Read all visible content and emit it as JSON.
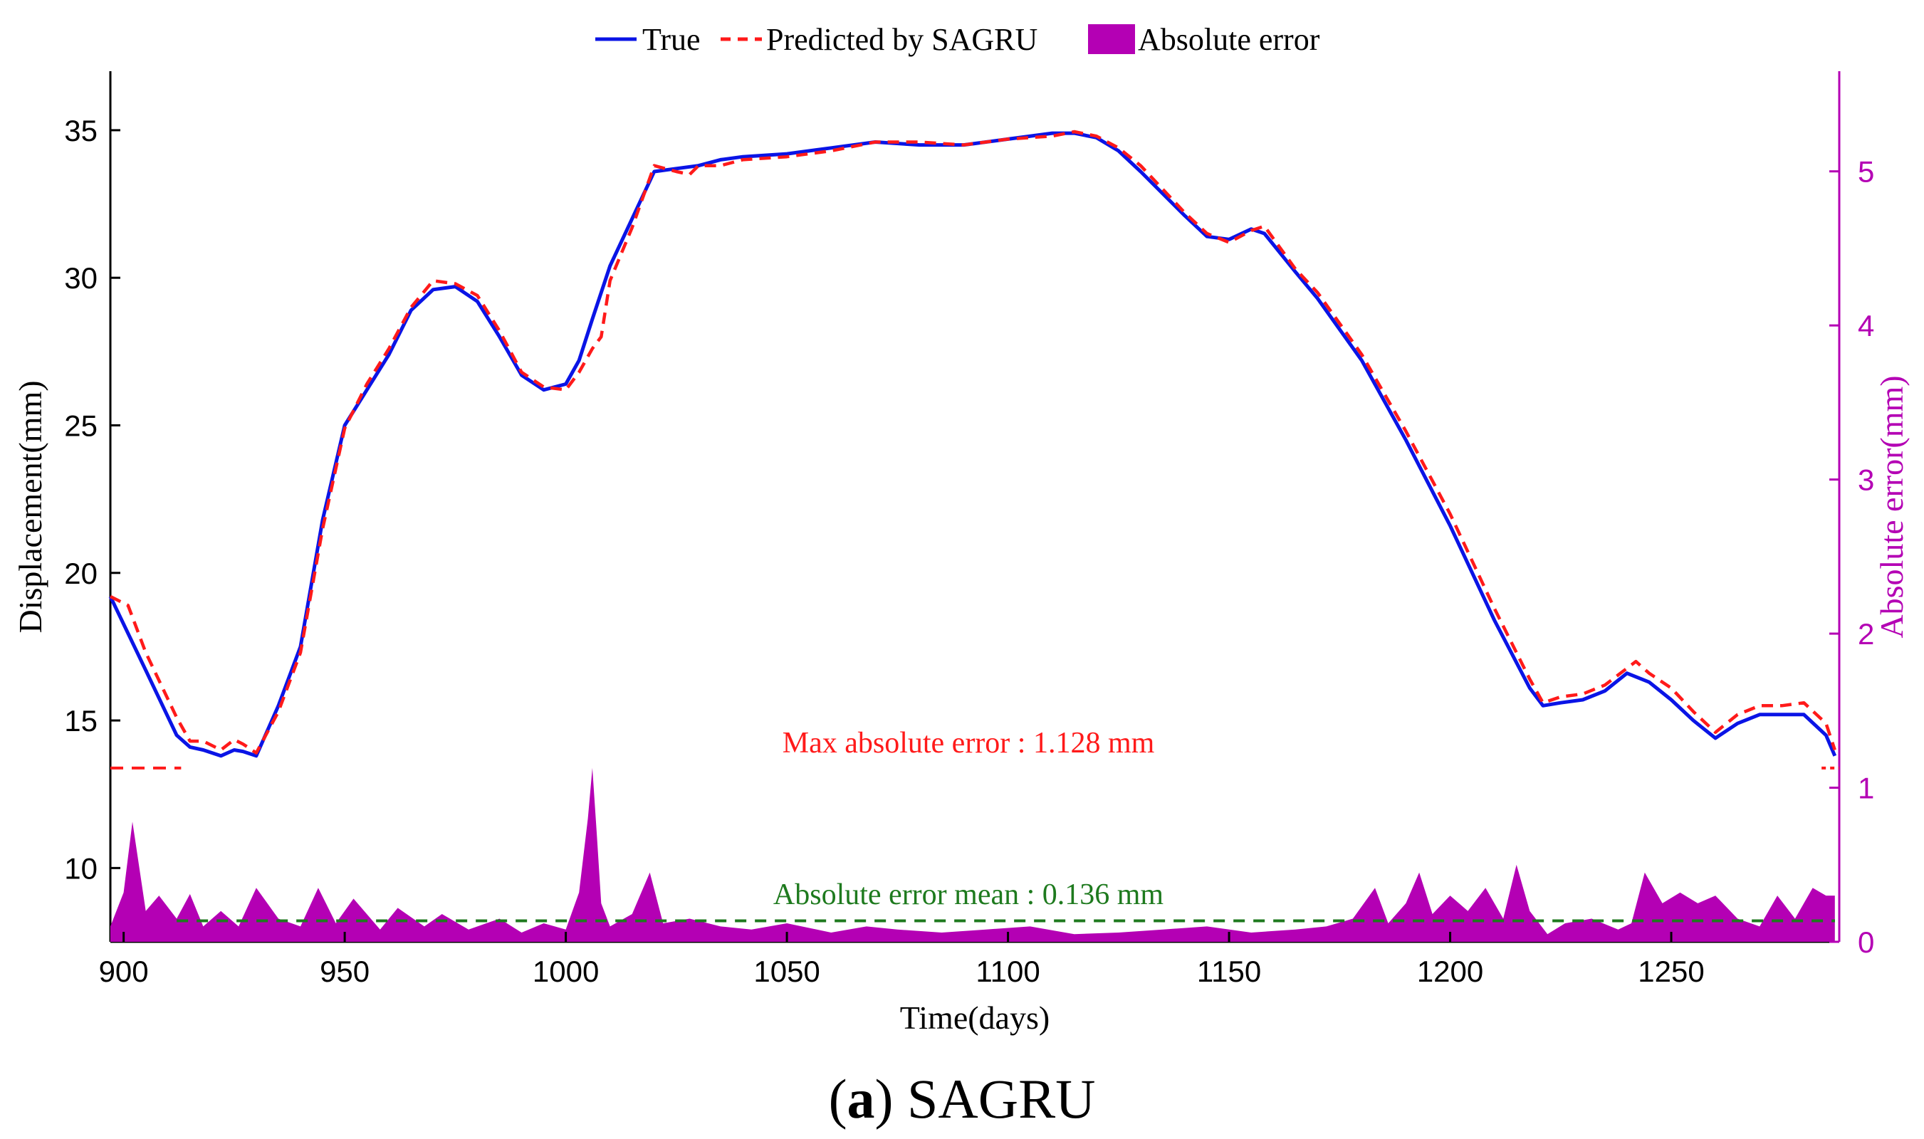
{
  "caption": {
    "letter": "a",
    "text": "SAGRU"
  },
  "colors": {
    "true": "#0a14e6",
    "predicted": "#ff1a1a",
    "error": "#b400b4",
    "mean": "#1e7a1e",
    "axis": "#000000"
  },
  "chart_data": {
    "type": "line",
    "xlabel": "Time(days)",
    "ylabel": "Displacement(mm)",
    "y2label": "Absolute error(mm)",
    "xlim": [
      897,
      1288
    ],
    "ylim": [
      7.5,
      37
    ],
    "y2lim": [
      0,
      5.65
    ],
    "xticks": [
      900,
      950,
      1000,
      1050,
      1100,
      1150,
      1200,
      1250
    ],
    "yticks": [
      10,
      15,
      20,
      25,
      30,
      35
    ],
    "y2ticks": [
      0,
      1,
      2,
      3,
      4,
      5
    ],
    "legend": {
      "placement": "top",
      "entries": [
        "True",
        "Predicted by SAGRU",
        "Absolute error"
      ]
    },
    "annotations": {
      "max_error": "Max absolute error : 1.128 mm",
      "mean_error": "Absolute error mean : 0.136 mm"
    },
    "max_error_value": 1.128,
    "mean_error_value": 0.136,
    "series": [
      {
        "name": "True",
        "x": [
          897,
          905,
          912,
          915,
          918,
          922,
          925,
          927,
          930,
          935,
          940,
          945,
          950,
          955,
          960,
          965,
          970,
          975,
          980,
          985,
          990,
          995,
          1000,
          1003,
          1006,
          1010,
          1015,
          1020,
          1025,
          1030,
          1035,
          1040,
          1050,
          1060,
          1070,
          1080,
          1090,
          1100,
          1110,
          1115,
          1120,
          1125,
          1130,
          1140,
          1145,
          1150,
          1155,
          1158,
          1165,
          1170,
          1180,
          1190,
          1200,
          1210,
          1218,
          1221,
          1225,
          1230,
          1235,
          1240,
          1245,
          1250,
          1255,
          1260,
          1265,
          1270,
          1275,
          1280,
          1285,
          1287
        ],
        "y": [
          19.2,
          16.7,
          14.5,
          14.1,
          14.0,
          13.8,
          14.0,
          13.95,
          13.8,
          15.5,
          17.5,
          21.8,
          25.0,
          26.2,
          27.4,
          28.9,
          29.6,
          29.7,
          29.2,
          28.0,
          26.7,
          26.2,
          26.4,
          27.2,
          28.6,
          30.4,
          32.0,
          33.6,
          33.7,
          33.8,
          34.0,
          34.1,
          34.2,
          34.4,
          34.6,
          34.5,
          34.5,
          34.7,
          34.9,
          34.9,
          34.75,
          34.3,
          33.6,
          32.1,
          31.4,
          31.3,
          31.65,
          31.5,
          30.2,
          29.3,
          27.2,
          24.5,
          21.6,
          18.4,
          16.1,
          15.5,
          15.6,
          15.7,
          16.0,
          16.6,
          16.3,
          15.7,
          15.0,
          14.4,
          14.9,
          15.2,
          15.2,
          15.2,
          14.5,
          13.8
        ]
      },
      {
        "name": "Predicted by SAGRU",
        "x": [
          897,
          901,
          905,
          912,
          915,
          918,
          922,
          925,
          927,
          930,
          935,
          940,
          945,
          950,
          955,
          960,
          965,
          970,
          975,
          980,
          985,
          990,
          995,
          1000,
          1003,
          1006,
          1008,
          1010,
          1015,
          1020,
          1025,
          1028,
          1030,
          1035,
          1040,
          1050,
          1060,
          1070,
          1080,
          1090,
          1100,
          1110,
          1115,
          1120,
          1125,
          1130,
          1140,
          1145,
          1150,
          1155,
          1158,
          1165,
          1170,
          1180,
          1190,
          1200,
          1210,
          1218,
          1221,
          1225,
          1230,
          1235,
          1242,
          1245,
          1250,
          1255,
          1260,
          1265,
          1270,
          1275,
          1280,
          1285,
          1287
        ],
        "y": [
          19.2,
          18.9,
          17.3,
          15.1,
          14.3,
          14.3,
          14.0,
          14.35,
          14.2,
          13.9,
          15.3,
          17.3,
          21.5,
          24.9,
          26.4,
          27.6,
          29.0,
          29.9,
          29.8,
          29.4,
          28.2,
          26.8,
          26.3,
          26.2,
          26.8,
          27.6,
          28.0,
          29.9,
          31.7,
          33.8,
          33.6,
          33.5,
          33.8,
          33.8,
          34.0,
          34.1,
          34.3,
          34.6,
          34.6,
          34.5,
          34.7,
          34.8,
          34.95,
          34.8,
          34.4,
          33.8,
          32.2,
          31.5,
          31.2,
          31.6,
          31.75,
          30.3,
          29.5,
          27.4,
          24.8,
          22.0,
          18.8,
          16.4,
          15.6,
          15.8,
          15.9,
          16.2,
          17.0,
          16.6,
          16.1,
          15.3,
          14.6,
          15.2,
          15.5,
          15.5,
          15.6,
          14.9,
          14.0
        ]
      },
      {
        "name": "Absolute error",
        "axis": "right",
        "x": [
          897,
          900,
          902,
          905,
          908,
          912,
          915,
          918,
          922,
          926,
          930,
          935,
          940,
          944,
          948,
          952,
          958,
          962,
          968,
          972,
          978,
          985,
          990,
          995,
          1000,
          1003,
          1005,
          1006,
          1007,
          1008,
          1010,
          1015,
          1019,
          1022,
          1028,
          1035,
          1042,
          1050,
          1060,
          1068,
          1075,
          1085,
          1095,
          1105,
          1115,
          1125,
          1135,
          1145,
          1155,
          1165,
          1172,
          1178,
          1183,
          1186,
          1190,
          1193,
          1196,
          1200,
          1204,
          1208,
          1212,
          1215,
          1218,
          1222,
          1226,
          1232,
          1238,
          1241,
          1244,
          1248,
          1252,
          1256,
          1260,
          1265,
          1270,
          1274,
          1278,
          1282,
          1285,
          1287
        ],
        "y": [
          0.1,
          0.32,
          0.78,
          0.2,
          0.3,
          0.15,
          0.31,
          0.1,
          0.2,
          0.1,
          0.35,
          0.15,
          0.1,
          0.35,
          0.12,
          0.28,
          0.08,
          0.22,
          0.1,
          0.18,
          0.08,
          0.15,
          0.06,
          0.12,
          0.08,
          0.32,
          0.8,
          1.128,
          0.7,
          0.25,
          0.1,
          0.18,
          0.45,
          0.12,
          0.15,
          0.1,
          0.08,
          0.12,
          0.06,
          0.1,
          0.08,
          0.06,
          0.08,
          0.1,
          0.05,
          0.06,
          0.08,
          0.1,
          0.06,
          0.08,
          0.1,
          0.15,
          0.35,
          0.12,
          0.25,
          0.45,
          0.18,
          0.3,
          0.2,
          0.35,
          0.15,
          0.5,
          0.2,
          0.05,
          0.12,
          0.15,
          0.08,
          0.12,
          0.45,
          0.25,
          0.32,
          0.25,
          0.3,
          0.15,
          0.1,
          0.3,
          0.15,
          0.35,
          0.3,
          0.3
        ]
      }
    ]
  }
}
